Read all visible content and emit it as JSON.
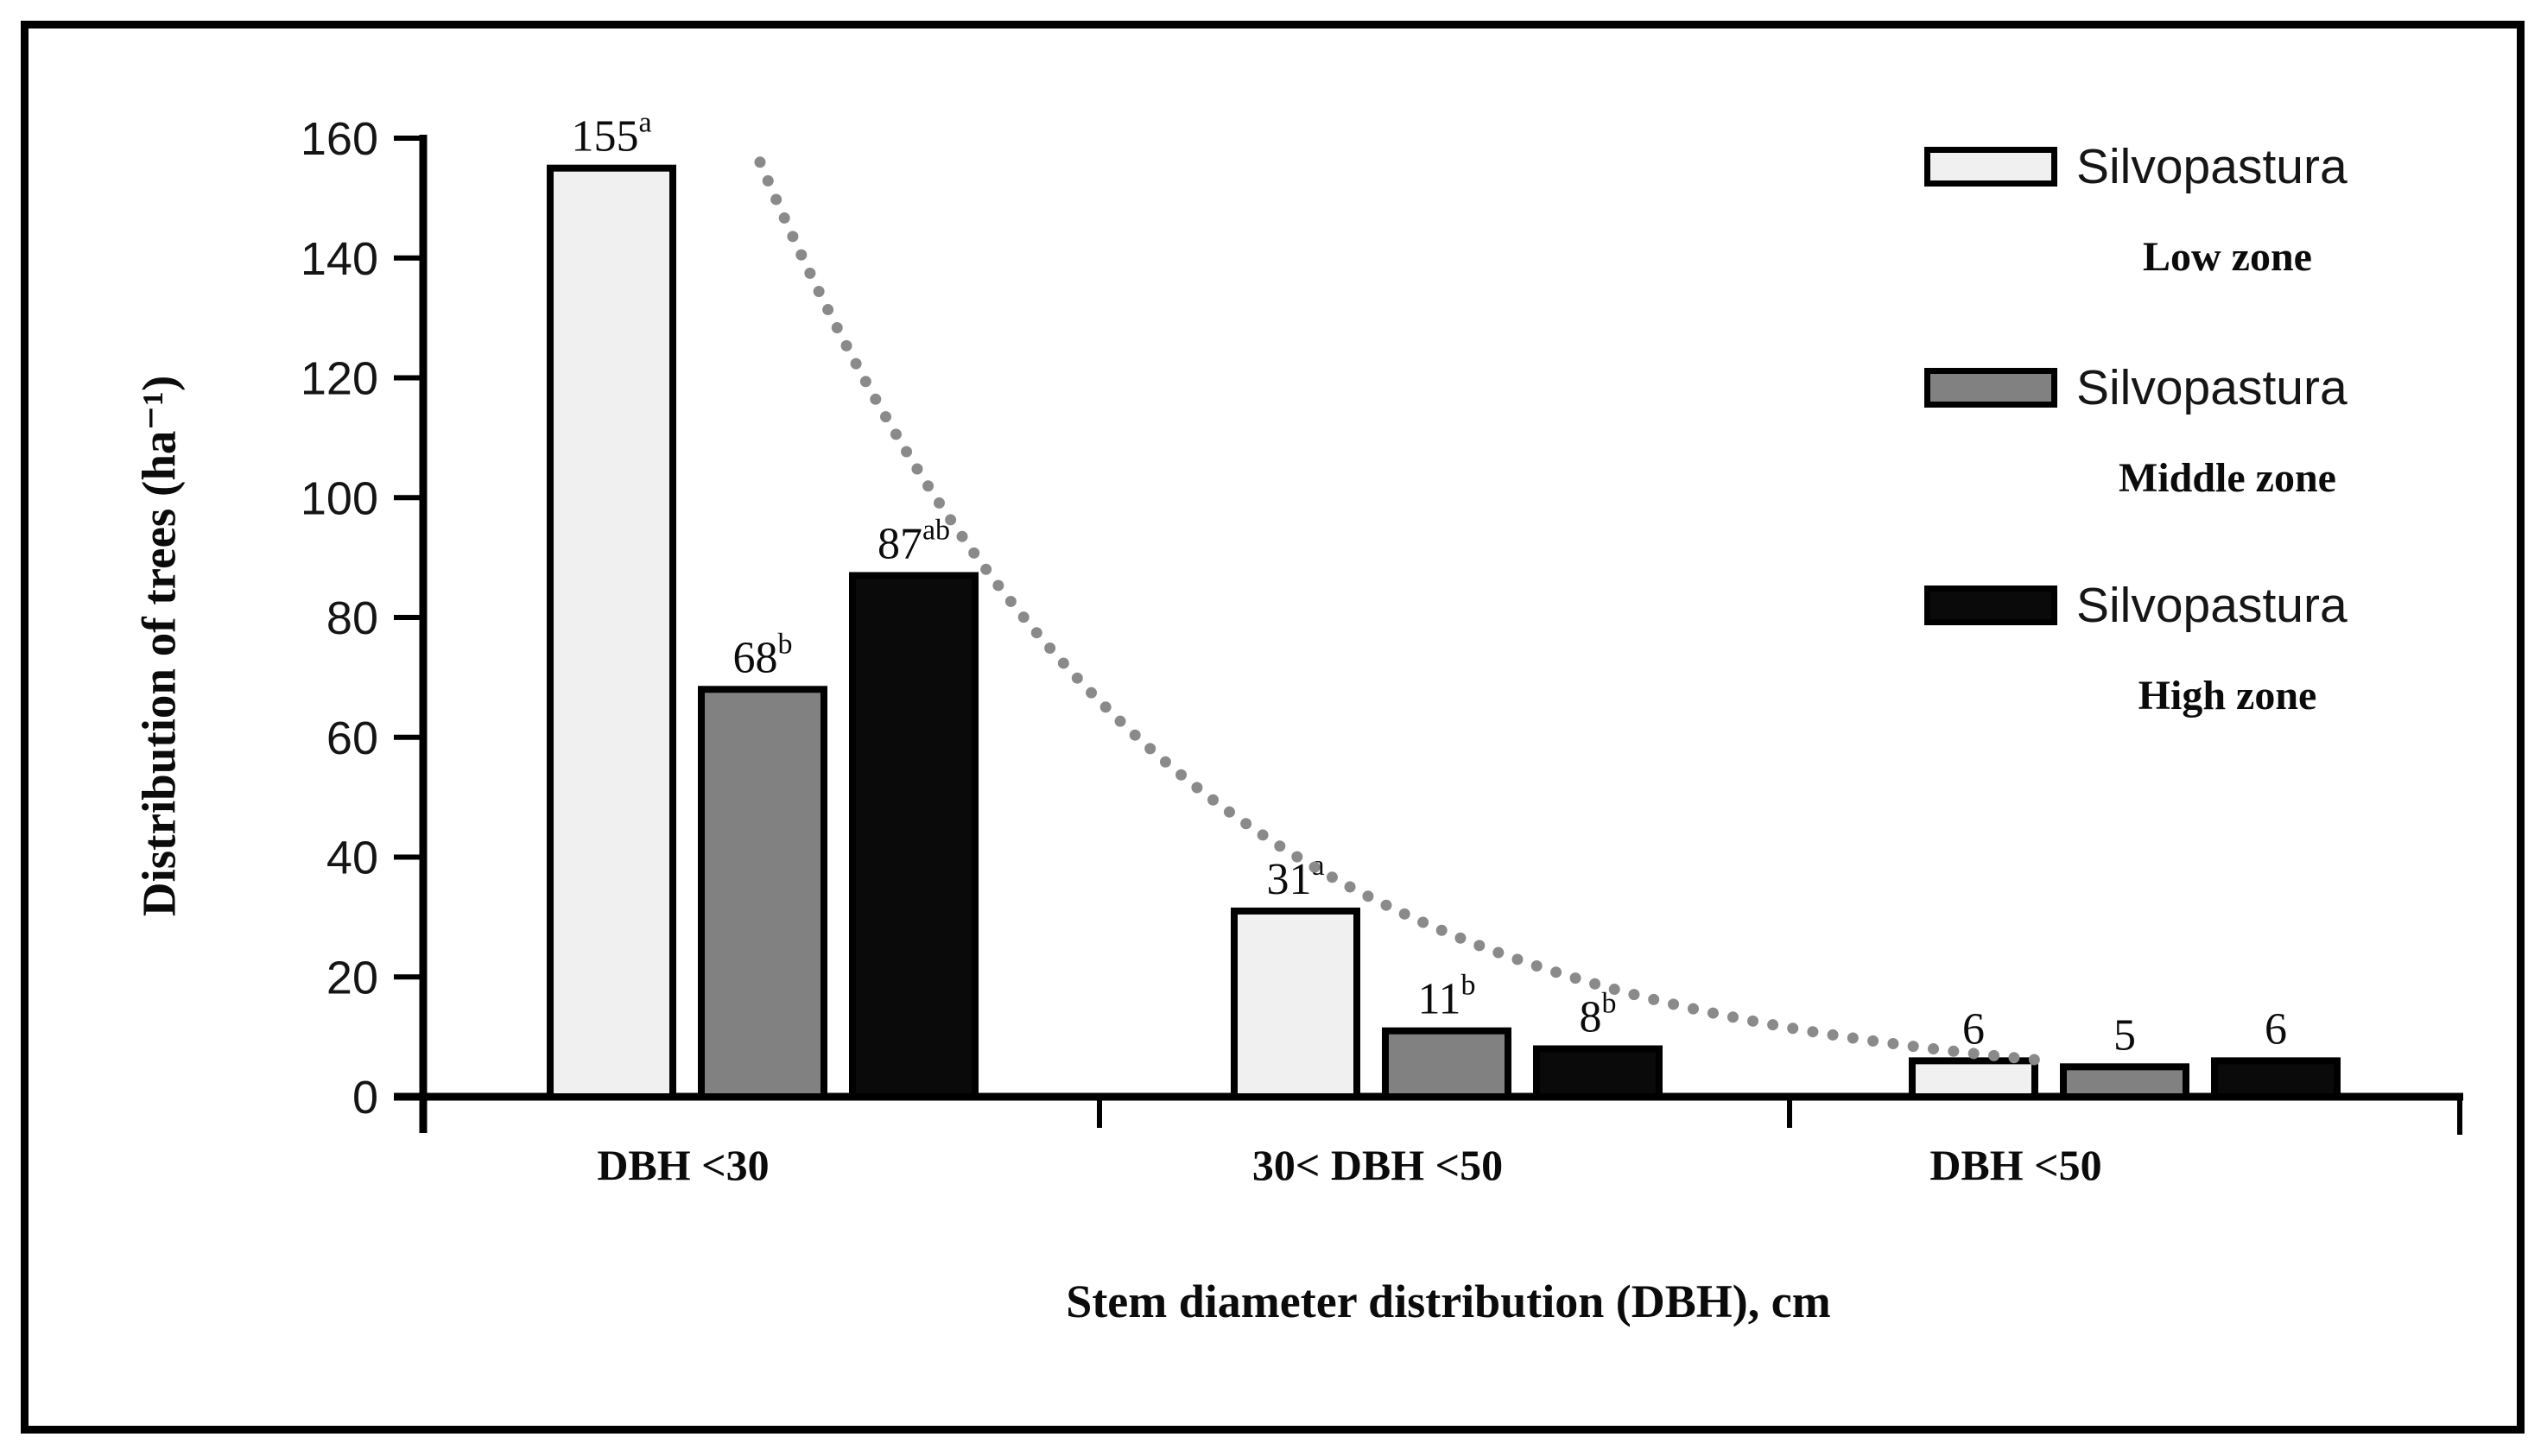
{
  "chart_data": {
    "type": "bar",
    "title": "",
    "xlabel": "Stem diameter distribution (DBH), cm",
    "ylabel": "Distribution of trees (ha⁻¹)",
    "ylim": [
      0,
      160
    ],
    "yticks": [
      0,
      20,
      40,
      60,
      80,
      100,
      120,
      140,
      160
    ],
    "grid": false,
    "legend_position": "upper right",
    "categories": [
      "DBH <30",
      "30< DBH <50",
      "DBH <50"
    ],
    "series": [
      {
        "name": "Silvopastura",
        "zone": "Low zone",
        "fill": "#f0f0f0",
        "border": "#000000",
        "values": [
          155,
          31,
          6
        ],
        "value_labels": [
          {
            "base": "155",
            "sup": "a"
          },
          {
            "base": "31",
            "sup": "a"
          },
          {
            "base": "6",
            "sup": ""
          }
        ]
      },
      {
        "name": "Silvopastura",
        "zone": "Middle zone",
        "fill": "#818181",
        "border": "#000000",
        "values": [
          68,
          11,
          5
        ],
        "value_labels": [
          {
            "base": "68",
            "sup": "b"
          },
          {
            "base": "11",
            "sup": "b"
          },
          {
            "base": "5",
            "sup": ""
          }
        ]
      },
      {
        "name": "Silvopastura",
        "zone": "High zone",
        "fill": "#0a0a0a",
        "border": "#000000",
        "values": [
          87,
          8,
          6
        ],
        "value_labels": [
          {
            "base": "87",
            "sup": "ab"
          },
          {
            "base": "8",
            "sup": "b"
          },
          {
            "base": "6",
            "sup": ""
          }
        ]
      }
    ],
    "trendline": {
      "style": "dotted",
      "color": "#8a8a8a",
      "shape": "exponential-decay",
      "start_value": 156,
      "end_value": 6
    },
    "frame_color": "#000000",
    "axis_color": "#000000"
  }
}
